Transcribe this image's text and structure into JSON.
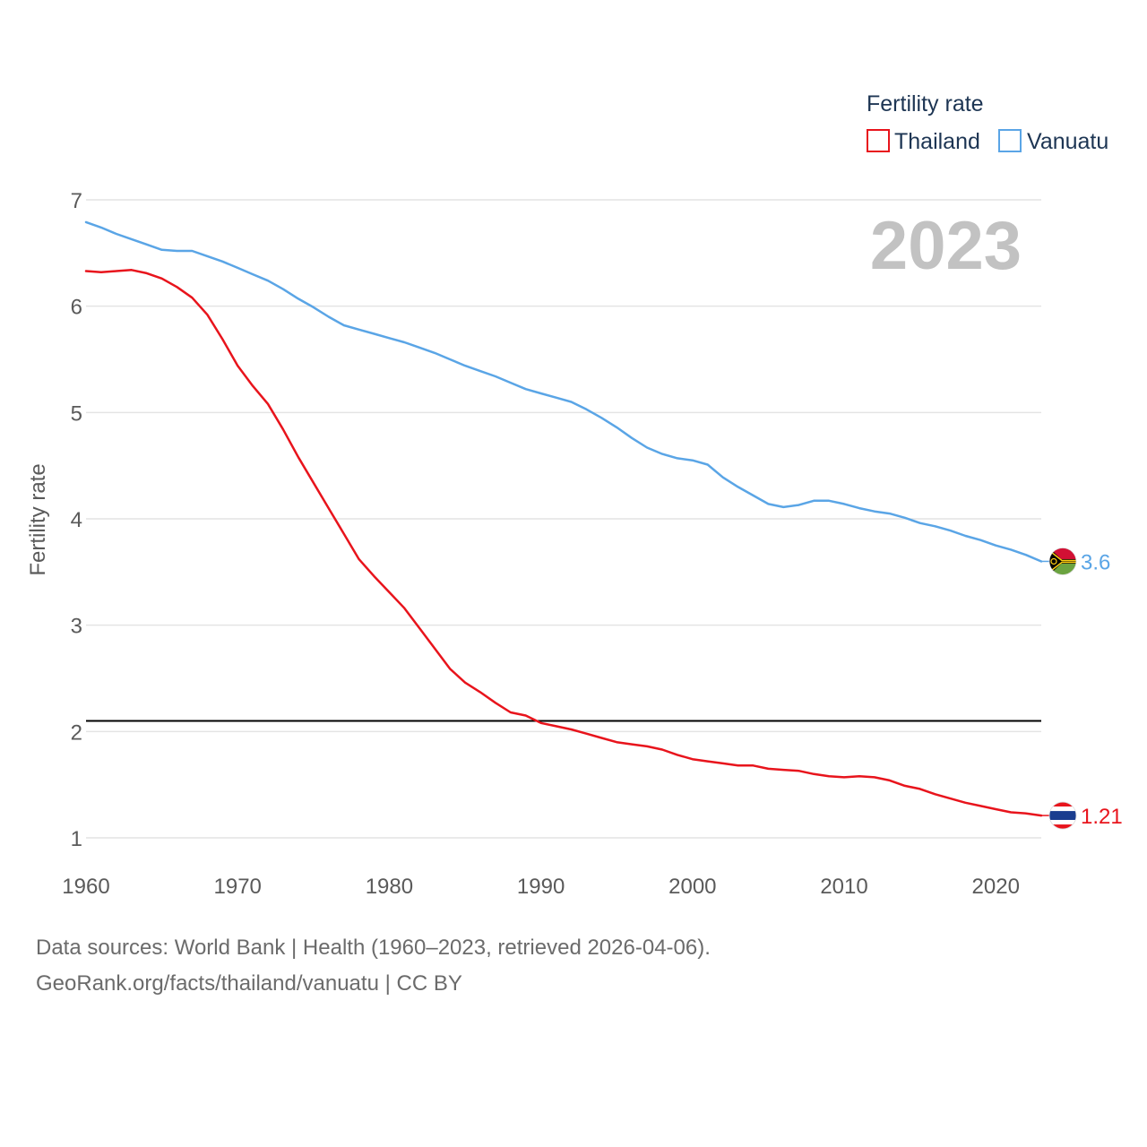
{
  "colors": {
    "thailand": "#e8141c",
    "vanuatu": "#5aa5e6",
    "reference": "#000000"
  },
  "chart_data": {
    "type": "line",
    "title": "Fertility rate",
    "xlabel": "",
    "ylabel": "Fertility rate",
    "current_year": "2023",
    "xlim": [
      1960,
      2023
    ],
    "ylim": [
      1,
      7
    ],
    "x_ticks": [
      1960,
      1970,
      1980,
      1990,
      2000,
      2010,
      2020
    ],
    "y_ticks": [
      1,
      2,
      3,
      4,
      5,
      6,
      7
    ],
    "reference_line": 2.1,
    "legend": {
      "title": "Fertility rate",
      "position": "top-right"
    },
    "x": [
      1960,
      1961,
      1962,
      1963,
      1964,
      1965,
      1966,
      1967,
      1968,
      1969,
      1970,
      1971,
      1972,
      1973,
      1974,
      1975,
      1976,
      1977,
      1978,
      1979,
      1980,
      1981,
      1982,
      1983,
      1984,
      1985,
      1986,
      1987,
      1988,
      1989,
      1990,
      1991,
      1992,
      1993,
      1994,
      1995,
      1996,
      1997,
      1998,
      1999,
      2000,
      2001,
      2002,
      2003,
      2004,
      2005,
      2006,
      2007,
      2008,
      2009,
      2010,
      2011,
      2012,
      2013,
      2014,
      2015,
      2016,
      2017,
      2018,
      2019,
      2020,
      2021,
      2022,
      2023
    ],
    "series": [
      {
        "name": "Thailand",
        "flag": "thailand-flag",
        "end_label": "1.21",
        "values": [
          6.33,
          6.32,
          6.33,
          6.34,
          6.31,
          6.26,
          6.18,
          6.08,
          5.92,
          5.69,
          5.44,
          5.25,
          5.08,
          4.84,
          4.58,
          4.34,
          4.1,
          3.86,
          3.62,
          3.46,
          3.31,
          3.16,
          2.97,
          2.78,
          2.59,
          2.46,
          2.37,
          2.27,
          2.18,
          2.15,
          2.08,
          2.05,
          2.02,
          1.98,
          1.94,
          1.9,
          1.88,
          1.86,
          1.83,
          1.78,
          1.74,
          1.72,
          1.7,
          1.68,
          1.68,
          1.65,
          1.64,
          1.63,
          1.6,
          1.58,
          1.57,
          1.58,
          1.57,
          1.54,
          1.49,
          1.46,
          1.41,
          1.37,
          1.33,
          1.3,
          1.27,
          1.24,
          1.23,
          1.21
        ]
      },
      {
        "name": "Vanuatu",
        "flag": "vanuatu-flag",
        "end_label": "3.6",
        "values": [
          6.79,
          6.74,
          6.68,
          6.63,
          6.58,
          6.53,
          6.52,
          6.52,
          6.47,
          6.42,
          6.36,
          6.3,
          6.24,
          6.16,
          6.07,
          5.99,
          5.9,
          5.82,
          5.78,
          5.74,
          5.7,
          5.66,
          5.61,
          5.56,
          5.5,
          5.44,
          5.39,
          5.34,
          5.28,
          5.22,
          5.18,
          5.14,
          5.1,
          5.03,
          4.95,
          4.86,
          4.76,
          4.67,
          4.61,
          4.57,
          4.55,
          4.51,
          4.39,
          4.3,
          4.22,
          4.14,
          4.11,
          4.13,
          4.17,
          4.17,
          4.14,
          4.1,
          4.07,
          4.05,
          4.01,
          3.96,
          3.93,
          3.89,
          3.84,
          3.8,
          3.75,
          3.71,
          3.66,
          3.6
        ]
      }
    ]
  },
  "footer": {
    "line1": "Data sources: World Bank | Health (1960–2023, retrieved 2026-04-06).",
    "line2": "GeoRank.org/facts/thailand/vanuatu | CC BY"
  }
}
